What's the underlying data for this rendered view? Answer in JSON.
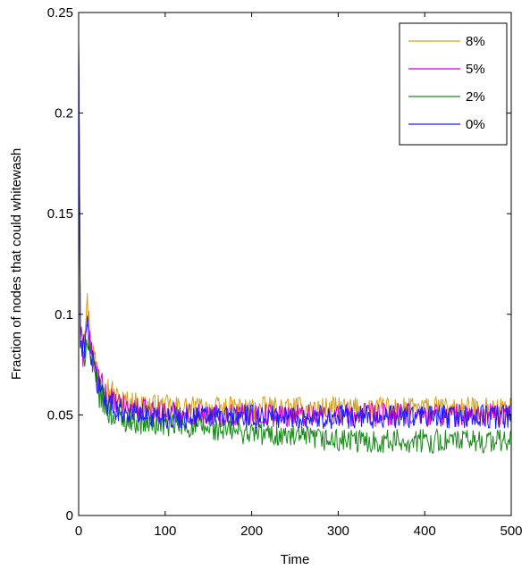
{
  "chart_data": {
    "type": "line",
    "xlabel": "Time",
    "ylabel": "Fraction of nodes that could whitewash",
    "xlim": [
      0,
      500
    ],
    "ylim": [
      0,
      0.25
    ],
    "xticks": [
      0,
      100,
      200,
      300,
      400,
      500
    ],
    "xtick_labels": [
      "0",
      "100",
      "200",
      "300",
      "400",
      "500"
    ],
    "yticks": [
      0,
      0.05,
      0.1,
      0.15,
      0.2,
      0.25
    ],
    "ytick_labels": [
      "0",
      "0.05",
      "0.1",
      "0.15",
      "0.2",
      "0.25"
    ],
    "grid": false,
    "legend_position": "top-right",
    "series": [
      {
        "name": "8%",
        "color": "#d4a017",
        "x": [
          0,
          2,
          5,
          10,
          15,
          20,
          30,
          40,
          50,
          75,
          100,
          150,
          200,
          250,
          300,
          350,
          400,
          450,
          500
        ],
        "y": [
          0.235,
          0.1,
          0.09,
          0.105,
          0.085,
          0.075,
          0.065,
          0.06,
          0.057,
          0.055,
          0.054,
          0.053,
          0.053,
          0.053,
          0.053,
          0.053,
          0.053,
          0.053,
          0.053
        ]
      },
      {
        "name": "5%",
        "color": "#cc00cc",
        "x": [
          0,
          2,
          5,
          10,
          15,
          20,
          30,
          40,
          50,
          75,
          100,
          150,
          200,
          250,
          300,
          350,
          400,
          450,
          500
        ],
        "y": [
          0.235,
          0.09,
          0.08,
          0.095,
          0.08,
          0.07,
          0.06,
          0.056,
          0.054,
          0.052,
          0.051,
          0.05,
          0.05,
          0.05,
          0.05,
          0.05,
          0.05,
          0.05,
          0.05
        ]
      },
      {
        "name": "2%",
        "color": "#1a8a1a",
        "x": [
          0,
          2,
          5,
          10,
          15,
          20,
          30,
          40,
          50,
          75,
          100,
          150,
          200,
          250,
          300,
          350,
          400,
          450,
          500
        ],
        "y": [
          0.235,
          0.085,
          0.075,
          0.09,
          0.075,
          0.065,
          0.055,
          0.05,
          0.048,
          0.046,
          0.045,
          0.043,
          0.041,
          0.039,
          0.037,
          0.037,
          0.037,
          0.037,
          0.037
        ]
      },
      {
        "name": "0%",
        "color": "#1a1aff",
        "x": [
          0,
          2,
          5,
          10,
          15,
          20,
          30,
          40,
          50,
          75,
          100,
          150,
          200,
          250,
          300,
          350,
          400,
          450,
          500
        ],
        "y": [
          0.235,
          0.085,
          0.08,
          0.095,
          0.078,
          0.068,
          0.058,
          0.054,
          0.052,
          0.05,
          0.049,
          0.049,
          0.049,
          0.049,
          0.049,
          0.049,
          0.049,
          0.049,
          0.049
        ]
      }
    ]
  }
}
